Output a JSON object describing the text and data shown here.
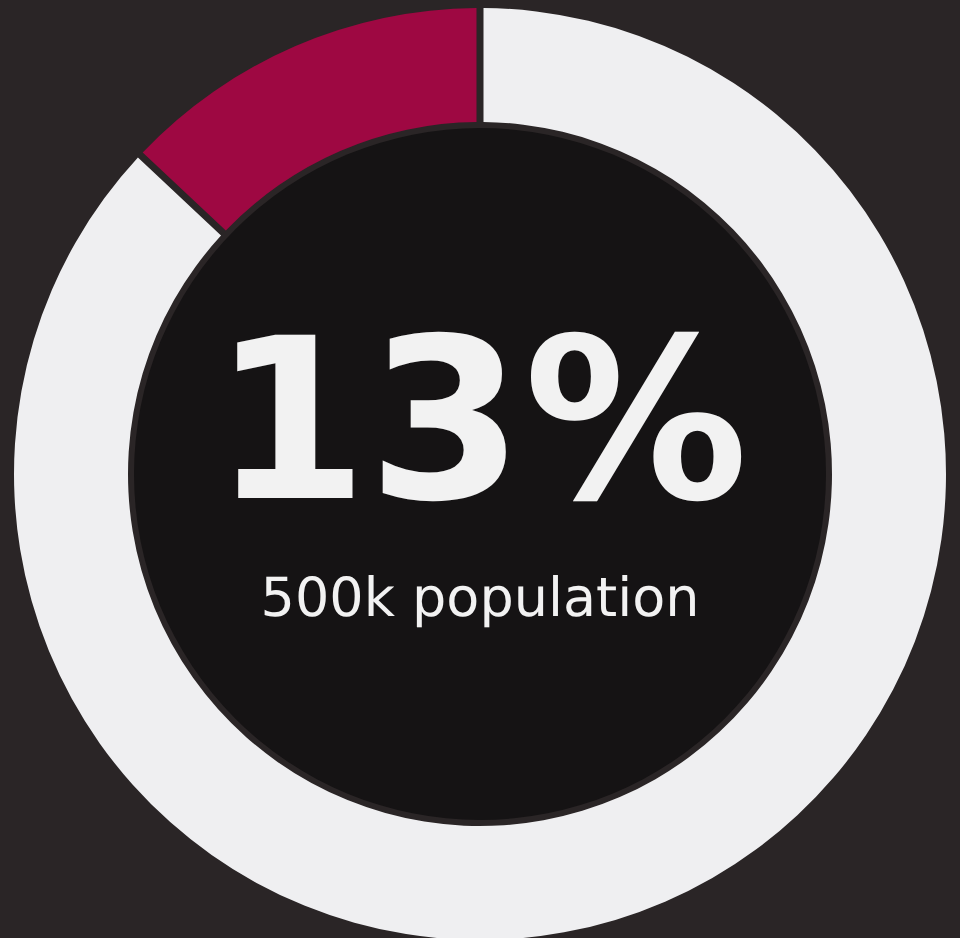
{
  "chart_data": {
    "type": "donut",
    "categories": [
      null,
      null
    ],
    "values": [
      87,
      13
    ],
    "colors": [
      "#efeff1",
      "#9e0842"
    ],
    "annotations": [
      "13%",
      "500k population"
    ]
  }
}
